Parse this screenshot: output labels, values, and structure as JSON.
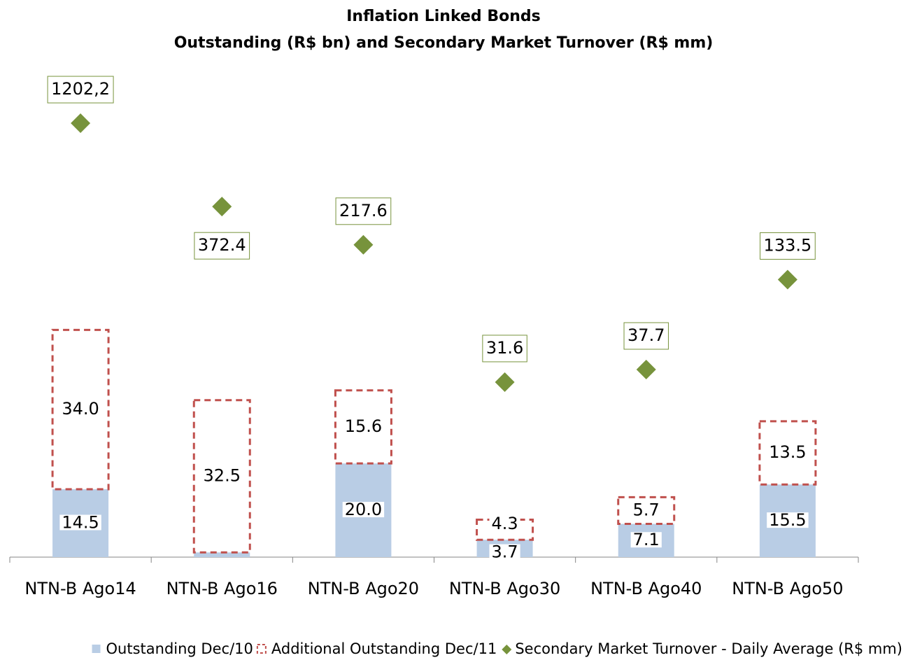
{
  "chart_data": {
    "type": "bar",
    "title": "Inflation Linked Bonds",
    "subtitle": "Outstanding (R$ bn) and Secondary Market Turnover (R$ mm)",
    "categories": [
      "NTN-B Ago14",
      "NTN-B Ago16",
      "NTN-B Ago20",
      "NTN-B Ago30",
      "NTN-B Ago40",
      "NTN-B Ago50"
    ],
    "stacked": true,
    "ylim": [
      0,
      104
    ],
    "y2lim": [
      2.7,
      2540
    ],
    "y2_log_scale": true,
    "legend": "bottom",
    "series": [
      {
        "name": "Outstanding Dec/10",
        "color": "#b9cde5",
        "type": "bar",
        "values": [
          14.5,
          1.0,
          20.0,
          3.7,
          7.1,
          15.5
        ],
        "value_labels": [
          "14.5",
          null,
          "20.0",
          "3.7",
          "7.1",
          "15.5"
        ]
      },
      {
        "name": "Additional Outstanding Dec/11",
        "color": "#c0504d",
        "type": "bar",
        "dashed": true,
        "values": [
          34.0,
          32.5,
          15.6,
          4.3,
          5.7,
          13.5
        ],
        "value_labels": [
          "34.0",
          "32.5",
          "15.6",
          "4.3",
          "5.7",
          "13.5"
        ]
      },
      {
        "name": "Secondary Market Turnover - Daily Average (R$ mm)",
        "color": "#77933c",
        "type": "scatter",
        "axis": "y2",
        "marker": "diamond",
        "values": [
          1202.2,
          372.4,
          217.6,
          31.6,
          37.7,
          133.5
        ],
        "value_labels": [
          "1202,2",
          "372.4",
          "217.6",
          "31.6",
          "37.7",
          "133.5"
        ]
      }
    ]
  }
}
